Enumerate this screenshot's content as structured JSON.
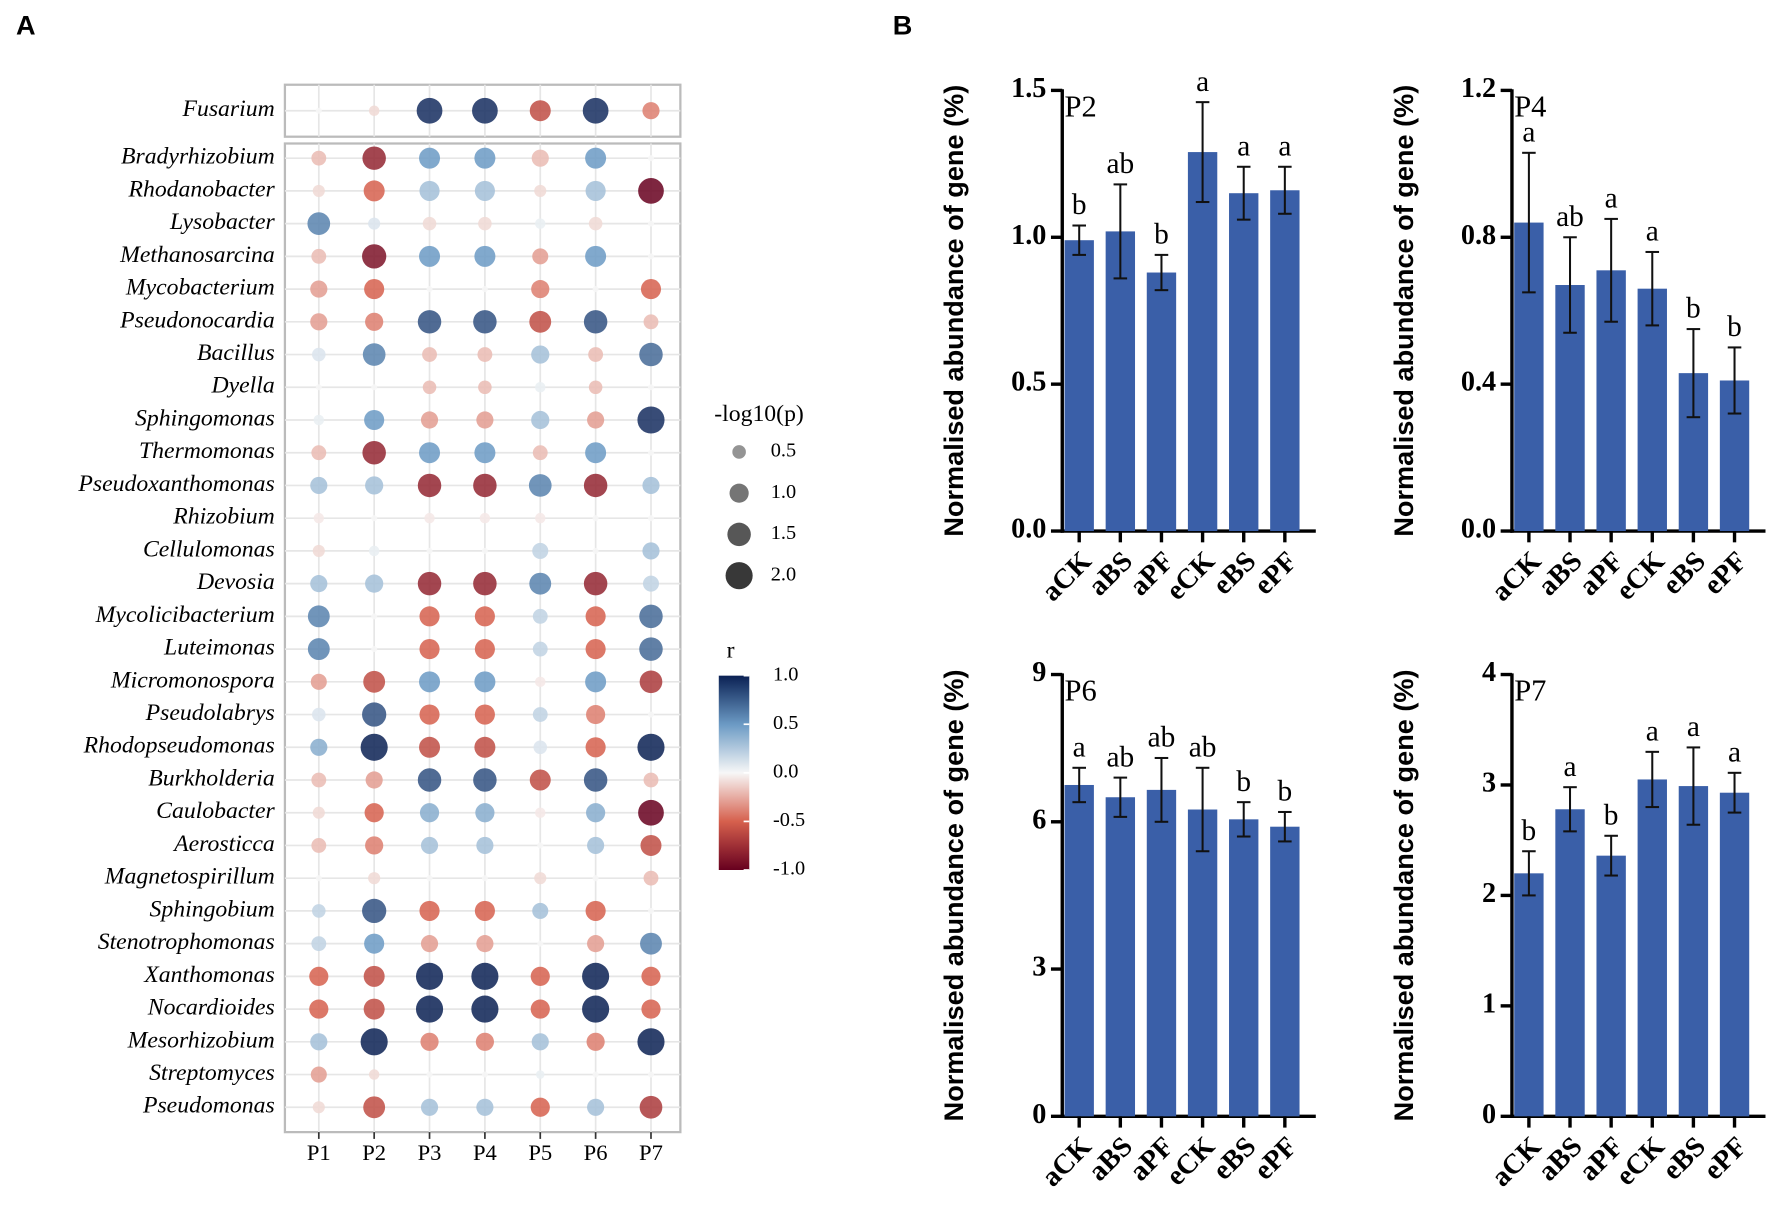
{
  "panel_labels": [
    "A",
    "B"
  ],
  "chart_data": [
    {
      "type": "bubble-matrix",
      "columns": [
        "P1",
        "P2",
        "P3",
        "P4",
        "P5",
        "P6",
        "P7"
      ],
      "highlight_rows": [
        {
          "name": "Fusarium",
          "values": [
            0,
            -0.1,
            0.95,
            0.95,
            -0.6,
            0.95,
            -0.4
          ],
          "sizes": [
            0.1,
            0.3,
            1.8,
            1.8,
            1.2,
            1.8,
            0.8
          ]
        }
      ],
      "rows": [
        {
          "name": "Bradyrhizobium",
          "values": [
            -0.2,
            -0.8,
            0.5,
            0.5,
            -0.2,
            0.5,
            0
          ],
          "sizes": [
            0.6,
            1.5,
            1.2,
            1.2,
            0.8,
            1.2,
            0.1
          ]
        },
        {
          "name": "Rhodanobacter",
          "values": [
            -0.1,
            -0.5,
            0.3,
            0.3,
            -0.1,
            0.3,
            -1.0
          ],
          "sizes": [
            0.4,
            1.2,
            1.1,
            1.1,
            0.4,
            1.1,
            1.8
          ]
        },
        {
          "name": "Lysobacter",
          "values": [
            0.6,
            0.1,
            -0.1,
            -0.1,
            0.05,
            -0.1,
            0
          ],
          "sizes": [
            1.4,
            0.4,
            0.5,
            0.5,
            0.3,
            0.5,
            0.1
          ]
        },
        {
          "name": "Methanosarcina",
          "values": [
            -0.2,
            -0.9,
            0.5,
            0.5,
            -0.3,
            0.5,
            0
          ],
          "sizes": [
            0.6,
            1.6,
            1.2,
            1.2,
            0.7,
            1.2,
            0.1
          ]
        },
        {
          "name": "Mycobacterium",
          "values": [
            -0.3,
            -0.5,
            0,
            0,
            -0.4,
            0,
            -0.5
          ],
          "sizes": [
            0.8,
            1.1,
            0.1,
            0.1,
            0.9,
            0.1,
            1.1
          ]
        },
        {
          "name": "Pseudonocardia",
          "values": [
            -0.3,
            -0.4,
            0.8,
            0.8,
            -0.6,
            0.8,
            -0.2
          ],
          "sizes": [
            0.8,
            0.9,
            1.5,
            1.5,
            1.3,
            1.5,
            0.6
          ]
        },
        {
          "name": "Bacillus",
          "values": [
            0.1,
            0.6,
            -0.2,
            -0.2,
            0.3,
            -0.2,
            0.7
          ],
          "sizes": [
            0.5,
            1.4,
            0.6,
            0.6,
            0.9,
            0.6,
            1.5
          ]
        },
        {
          "name": "Dyella",
          "values": [
            0,
            0,
            -0.2,
            -0.2,
            0.05,
            -0.2,
            0
          ],
          "sizes": [
            0.1,
            0.1,
            0.5,
            0.5,
            0.3,
            0.5,
            0.1
          ]
        },
        {
          "name": "Sphingomonas",
          "values": [
            0.05,
            0.5,
            -0.3,
            -0.3,
            0.3,
            -0.3,
            0.95
          ],
          "sizes": [
            0.3,
            1.1,
            0.8,
            0.8,
            0.9,
            0.8,
            2.0
          ]
        },
        {
          "name": "Thermomonas",
          "values": [
            -0.2,
            -0.8,
            0.5,
            0.5,
            -0.2,
            0.5,
            0
          ],
          "sizes": [
            0.6,
            1.5,
            1.2,
            1.2,
            0.6,
            1.2,
            0.1
          ]
        },
        {
          "name": "Pseudoxanthomonas",
          "values": [
            0.3,
            0.3,
            -0.8,
            -0.8,
            0.6,
            -0.8,
            0.3
          ],
          "sizes": [
            0.8,
            0.9,
            1.5,
            1.5,
            1.4,
            1.5,
            0.8
          ]
        },
        {
          "name": "Rhizobium",
          "values": [
            -0.05,
            0,
            -0.05,
            -0.05,
            -0.05,
            0,
            0
          ],
          "sizes": [
            0.3,
            0.1,
            0.3,
            0.3,
            0.3,
            0.1,
            0.1
          ]
        },
        {
          "name": "Cellulomonas",
          "values": [
            -0.1,
            0.05,
            0,
            0,
            0.2,
            0,
            0.3
          ],
          "sizes": [
            0.4,
            0.3,
            0.1,
            0.1,
            0.7,
            0.1,
            0.8
          ]
        },
        {
          "name": "Devosia",
          "values": [
            0.3,
            0.3,
            -0.8,
            -0.8,
            0.6,
            -0.8,
            0.2
          ],
          "sizes": [
            0.8,
            0.9,
            1.5,
            1.5,
            1.3,
            1.5,
            0.7
          ]
        },
        {
          "name": "Mycolicibacterium",
          "values": [
            0.6,
            0,
            -0.5,
            -0.5,
            0.2,
            -0.5,
            0.7
          ],
          "sizes": [
            1.3,
            0.1,
            1.1,
            1.1,
            0.6,
            1.1,
            1.5
          ]
        },
        {
          "name": "Luteimonas",
          "values": [
            0.6,
            0,
            -0.5,
            -0.5,
            0.2,
            -0.5,
            0.7
          ],
          "sizes": [
            1.3,
            0.1,
            1.1,
            1.1,
            0.6,
            1.1,
            1.5
          ]
        },
        {
          "name": "Micromonospora",
          "values": [
            -0.3,
            -0.6,
            0.5,
            0.5,
            -0.05,
            0.5,
            -0.7
          ],
          "sizes": [
            0.7,
            1.3,
            1.2,
            1.2,
            0.3,
            1.2,
            1.4
          ]
        },
        {
          "name": "Pseudolabrys",
          "values": [
            0.1,
            0.8,
            -0.5,
            -0.5,
            0.2,
            -0.4,
            0
          ],
          "sizes": [
            0.5,
            1.6,
            1.1,
            1.1,
            0.6,
            1.0,
            0.1
          ]
        },
        {
          "name": "Rhodopseudomonas",
          "values": [
            0.4,
            1.0,
            -0.6,
            -0.6,
            0.1,
            -0.5,
            1.0
          ],
          "sizes": [
            0.8,
            2.0,
            1.2,
            1.2,
            0.5,
            1.1,
            2.0
          ]
        },
        {
          "name": "Burkholderia",
          "values": [
            -0.2,
            -0.3,
            0.8,
            0.8,
            -0.6,
            0.8,
            -0.2
          ],
          "sizes": [
            0.6,
            0.8,
            1.5,
            1.5,
            1.2,
            1.5,
            0.6
          ]
        },
        {
          "name": "Caulobacter",
          "values": [
            -0.1,
            -0.5,
            0.4,
            0.4,
            -0.05,
            0.4,
            -1.0
          ],
          "sizes": [
            0.4,
            1.0,
            1.0,
            1.0,
            0.3,
            1.0,
            1.8
          ]
        },
        {
          "name": "Aerosticca",
          "values": [
            -0.2,
            -0.4,
            0.3,
            0.3,
            0,
            0.3,
            -0.6
          ],
          "sizes": [
            0.6,
            0.9,
            0.8,
            0.8,
            0.1,
            0.8,
            1.2
          ]
        },
        {
          "name": "Magnetospirillum",
          "values": [
            0,
            -0.1,
            0,
            0,
            -0.1,
            0,
            -0.2
          ],
          "sizes": [
            0.1,
            0.4,
            0.1,
            0.1,
            0.4,
            0.1,
            0.6
          ]
        },
        {
          "name": "Sphingobium",
          "values": [
            0.2,
            0.8,
            -0.5,
            -0.5,
            0.3,
            -0.5,
            0
          ],
          "sizes": [
            0.5,
            1.6,
            1.1,
            1.1,
            0.7,
            1.1,
            0.1
          ]
        },
        {
          "name": "Stenotrophomonas",
          "values": [
            0.2,
            0.5,
            -0.3,
            -0.3,
            0,
            -0.3,
            0.6
          ],
          "sizes": [
            0.6,
            1.1,
            0.8,
            0.8,
            0.1,
            0.8,
            1.3
          ]
        },
        {
          "name": "Xanthomonas",
          "values": [
            -0.5,
            -0.6,
            1.0,
            1.0,
            -0.5,
            1.0,
            -0.5
          ],
          "sizes": [
            1.0,
            1.2,
            2.0,
            2.0,
            1.0,
            2.0,
            1.0
          ]
        },
        {
          "name": "Nocardioides",
          "values": [
            -0.5,
            -0.6,
            1.0,
            1.0,
            -0.5,
            1.0,
            -0.5
          ],
          "sizes": [
            1.0,
            1.2,
            2.0,
            2.0,
            1.0,
            2.0,
            1.0
          ]
        },
        {
          "name": "Mesorhizobium",
          "values": [
            0.3,
            1.0,
            -0.4,
            -0.4,
            0.3,
            -0.4,
            1.0
          ],
          "sizes": [
            0.8,
            2.0,
            0.9,
            0.9,
            0.8,
            0.9,
            2.0
          ]
        },
        {
          "name": "Streptomyces",
          "values": [
            -0.3,
            -0.1,
            0,
            0,
            0.05,
            0,
            0
          ],
          "sizes": [
            0.7,
            0.3,
            0.1,
            0.1,
            0.2,
            0.1,
            0.1
          ]
        },
        {
          "name": "Pseudomonas",
          "values": [
            -0.1,
            -0.6,
            0.3,
            0.3,
            -0.5,
            0.3,
            -0.7
          ],
          "sizes": [
            0.4,
            1.3,
            0.8,
            0.8,
            1.0,
            0.8,
            1.4
          ]
        }
      ],
      "size_legend": {
        "title": "-log10(p)",
        "values": [
          0.5,
          {
            "value": 1,
            "label": "1.0"
          },
          1.5,
          {
            "value": 2,
            "label": "2.0"
          }
        ]
      },
      "colorbar": {
        "title": "r",
        "clim": [
          -1,
          1
        ],
        "colors": [
          "#67001f",
          "#d6604d",
          "#f7f7f7",
          "#6b9ac4",
          "#0b2154"
        ],
        "ticks": [
          {
            "value": 1,
            "label": "1.0"
          },
          0.5,
          {
            "value": 0,
            "label": "0.0"
          },
          -0.5,
          {
            "value": -1,
            "label": "-1.0"
          }
        ]
      }
    },
    {
      "type": "bar",
      "title": "P2",
      "ylabel": "Normalised abundance of gene (%)",
      "color": "#3a5fa8",
      "categories": [
        "aCK",
        "aBS",
        "aPF",
        "eCK",
        "eBS",
        "ePF"
      ],
      "values": [
        0.99,
        1.02,
        0.88,
        1.29,
        1.15,
        1.16
      ],
      "errors": [
        0.05,
        0.16,
        0.06,
        0.17,
        0.09,
        0.08
      ],
      "annotations": [
        "b",
        "ab",
        "b",
        "a",
        "a",
        "a"
      ],
      "ylim": [
        0,
        1.5
      ],
      "yticks": [
        {
          "value": 0,
          "label": "0.0"
        },
        0.5,
        {
          "value": 1,
          "label": "1.0"
        },
        1.5
      ]
    },
    {
      "type": "bar",
      "title": "P4",
      "ylabel": "Normalised abundance of gene (%)",
      "color": "#3a5fa8",
      "categories": [
        "aCK",
        "aBS",
        "aPF",
        "eCK",
        "eBS",
        "ePF"
      ],
      "values": [
        0.84,
        0.67,
        0.71,
        0.66,
        0.43,
        0.41
      ],
      "errors": [
        0.19,
        0.13,
        0.14,
        0.1,
        0.12,
        0.09
      ],
      "annotations": [
        "a",
        "ab",
        "a",
        "a",
        "b",
        "b"
      ],
      "ylim": [
        0,
        1.2
      ],
      "yticks": [
        {
          "value": 0,
          "label": "0.0"
        },
        0.4,
        0.8,
        1.2
      ]
    },
    {
      "type": "bar",
      "title": "P6",
      "ylabel": "Normalised abundance of gene (%)",
      "color": "#3a5fa8",
      "categories": [
        "aCK",
        "aBS",
        "aPF",
        "eCK",
        "eBS",
        "ePF"
      ],
      "values": [
        6.75,
        6.5,
        6.65,
        6.25,
        6.05,
        5.9
      ],
      "errors": [
        0.35,
        0.4,
        0.65,
        0.85,
        0.35,
        0.3
      ],
      "annotations": [
        "a",
        "ab",
        "ab",
        "ab",
        "b",
        "b"
      ],
      "ylim": [
        0,
        9
      ],
      "yticks": [
        0,
        3,
        6,
        9
      ]
    },
    {
      "type": "bar",
      "title": "P7",
      "ylabel": "Normalised abundance of gene (%)",
      "color": "#3a5fa8",
      "categories": [
        "aCK",
        "aBS",
        "aPF",
        "eCK",
        "eBS",
        "ePF"
      ],
      "values": [
        2.2,
        2.78,
        2.36,
        3.05,
        2.99,
        2.93
      ],
      "errors": [
        0.2,
        0.2,
        0.18,
        0.25,
        0.35,
        0.18
      ],
      "annotations": [
        "b",
        "a",
        "b",
        "a",
        "a",
        "a"
      ],
      "ylim": [
        0,
        4
      ],
      "yticks": [
        0,
        1,
        2,
        3,
        4
      ]
    }
  ]
}
